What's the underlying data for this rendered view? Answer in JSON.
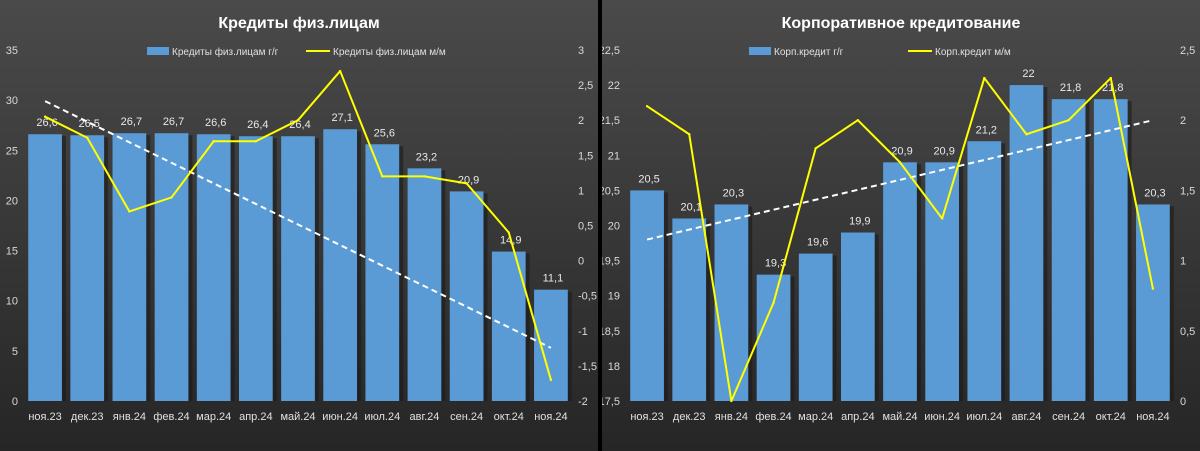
{
  "charts": [
    {
      "title": "Кредиты физ.лицам",
      "legend": {
        "bar_label": "Кредиты физ.лицам г/г",
        "line_label": "Кредиты физ.лицам м/м"
      },
      "colors": {
        "bar": "#5b9bd5",
        "line": "#ffff00",
        "trend": "#ffffff"
      },
      "left_axis": {
        "min": 0,
        "max": 35,
        "ticks": [
          "0",
          "5",
          "10",
          "15",
          "20",
          "25",
          "30",
          "35"
        ]
      },
      "right_axis": {
        "min": -2,
        "max": 3,
        "ticks": [
          "-2",
          "-1,5",
          "-1",
          "-0,5",
          "0",
          "0,5",
          "1",
          "1,5",
          "2",
          "2,5",
          "3"
        ]
      },
      "categories": [
        "ноя.23",
        "дек.23",
        "янв.24",
        "фев.24",
        "мар.24",
        "апр.24",
        "май.24",
        "июн.24",
        "июл.24",
        "авг.24",
        "сен.24",
        "окт.24",
        "ноя.24"
      ],
      "bar_values": [
        26.6,
        26.5,
        26.7,
        26.7,
        26.6,
        26.4,
        26.4,
        27.1,
        25.6,
        23.2,
        20.9,
        14.9,
        11.1
      ],
      "bar_labels": [
        "26,6",
        "26,5",
        "26,7",
        "26,7",
        "26,6",
        "26,4",
        "26,4",
        "27,1",
        "25,6",
        "23,2",
        "20,9",
        "14,9",
        "11,1"
      ],
      "line_values": [
        2.05,
        1.75,
        0.7,
        0.9,
        1.7,
        1.7,
        2.0,
        2.7,
        1.2,
        1.2,
        1.1,
        0.4,
        -1.7
      ],
      "trend": [
        29.9,
        5.3
      ]
    },
    {
      "title": "Корпоративное кредитование",
      "legend": {
        "bar_label": "Корп.кредит г/г",
        "line_label": "Корп.кредит м/м"
      },
      "colors": {
        "bar": "#5b9bd5",
        "line": "#ffff00",
        "trend": "#ffffff"
      },
      "left_axis": {
        "min": 17.5,
        "max": 22.5,
        "ticks": [
          "17,5",
          "18",
          "18,5",
          "19",
          "19,5",
          "20",
          "20,5",
          "21",
          "21,5",
          "22",
          "22,5"
        ]
      },
      "right_axis": {
        "min": 0,
        "max": 2.5,
        "ticks": [
          "0",
          "0,5",
          "1",
          "1,5",
          "2",
          "2,5"
        ]
      },
      "categories": [
        "ноя.23",
        "дек.23",
        "янв.24",
        "фев.24",
        "мар.24",
        "апр.24",
        "май.24",
        "июн.24",
        "июл.24",
        "авг.24",
        "сен.24",
        "окт.24",
        "ноя.24"
      ],
      "bar_values": [
        20.5,
        20.1,
        20.3,
        19.3,
        19.6,
        19.9,
        20.9,
        20.9,
        21.2,
        22.0,
        21.8,
        21.8,
        20.3
      ],
      "bar_labels": [
        "20,5",
        "20,1",
        "20,3",
        "19,3",
        "19,6",
        "19,9",
        "20,9",
        "20,9",
        "21,2",
        "22",
        "21,8",
        "21,8",
        "20,3"
      ],
      "line_values": [
        2.1,
        1.9,
        0.0,
        0.7,
        1.8,
        2.0,
        1.7,
        1.3,
        2.3,
        1.9,
        2.0,
        2.3,
        0.8
      ],
      "trend": [
        19.8,
        21.5
      ]
    }
  ]
}
